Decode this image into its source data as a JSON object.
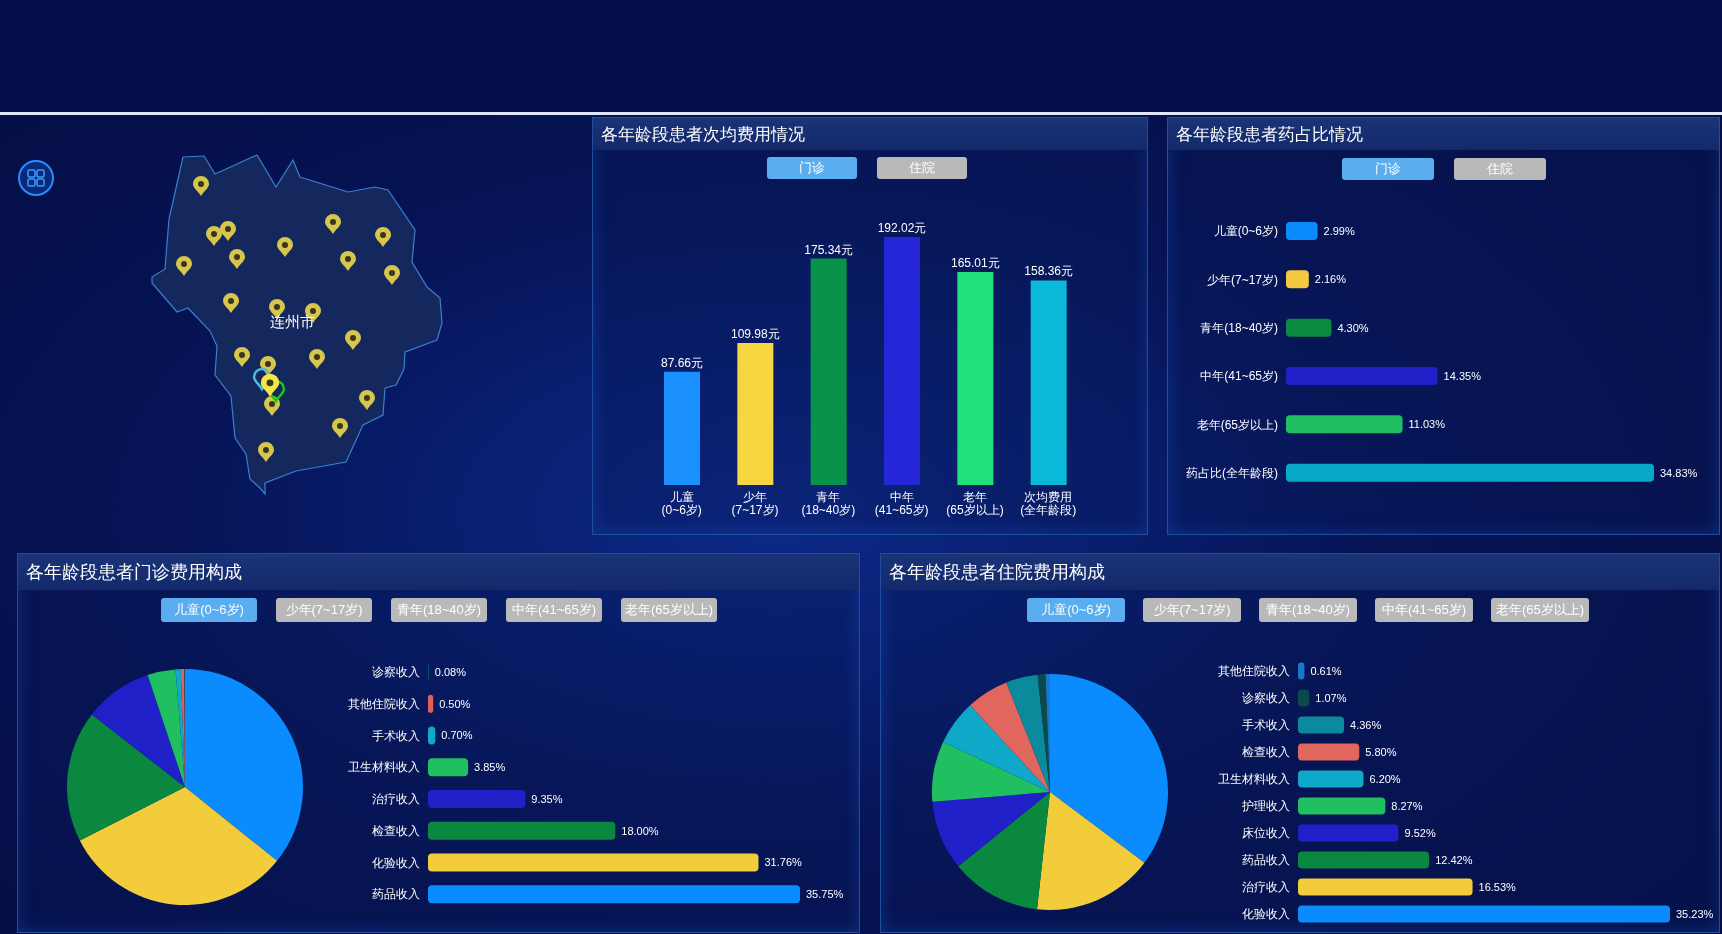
{
  "chart_data": [
    {
      "type": "other",
      "annotations": [
        "连州市"
      ]
    },
    {
      "type": "bar",
      "title": "各年龄段患者次均费用情况",
      "annotations": [
        "门诊",
        "住院"
      ],
      "categories": [
        "儿童\n(0~6岁)",
        "少年\n(7~17岁)",
        "青年\n(18~40岁)",
        "中年\n(41~65岁)",
        "老年\n(65岁以上)",
        "次均费用\n(全年龄段)"
      ],
      "values": [
        87.66,
        109.98,
        175.34,
        192.02,
        165.01,
        158.36
      ],
      "colors": [
        "#1a90ff",
        "#f7d642",
        "#09924a",
        "#2526d8",
        "#22e07a",
        "#0ab8d8"
      ],
      "value_labels": [
        "87.66元",
        "109.98元",
        "175.34元",
        "192.02元",
        "165.01元",
        "158.36元"
      ]
    },
    {
      "type": "bar",
      "orientation": "horizontal",
      "title": "各年龄段患者药占比情况",
      "annotations": [
        "门诊",
        "住院"
      ],
      "categories": [
        "儿童(0~6岁)",
        "少年(7~17岁)",
        "青年(18~40岁)",
        "中年(41~65岁)",
        "老年(65岁以上)",
        "药占比(全年龄段)"
      ],
      "values": [
        2.99,
        2.16,
        4.3,
        14.35,
        11.03,
        34.83
      ],
      "colors": [
        "#0a8cff",
        "#f5c842",
        "#0a8a40",
        "#2020c8",
        "#20c060",
        "#0aa8c8"
      ],
      "value_labels": [
        "2.99%",
        "2.16%",
        "4.30%",
        "14.35%",
        "11.03%",
        "34.83%"
      ]
    },
    {
      "type": "pie",
      "title": "各年龄段患者门诊费用构成",
      "annotations": [
        "儿童(0~6岁)",
        "少年(7~17岁)",
        "青年(18~40岁)",
        "中年(41~65岁)",
        "老年(65岁以上)"
      ],
      "categories": [
        null,
        null,
        null,
        null,
        null,
        null,
        null,
        null
      ],
      "values": [
        35.75,
        31.76,
        18.0,
        9.35,
        3.85,
        0.7,
        0.5,
        0.08
      ],
      "colors": [
        "#0a8cff",
        "#f2cc3a",
        "#0a8840",
        "#2020c8",
        "#20c060",
        "#12a8c8",
        "#e0605a",
        "#0a5a6a"
      ]
    },
    {
      "type": "bar",
      "orientation": "horizontal",
      "categories": [
        "诊察收入",
        "其他住院收入",
        "手术收入",
        "卫生材料收入",
        "治疗收入",
        "检查收入",
        "化验收入",
        "药品收入"
      ],
      "values": [
        0.08,
        0.5,
        0.7,
        3.85,
        9.35,
        18.0,
        31.76,
        35.75
      ],
      "colors": [
        "#0a5a6a",
        "#e0605a",
        "#12a8c8",
        "#20c060",
        "#2020c8",
        "#0a8840",
        "#f2cc3a",
        "#0a8cff"
      ],
      "value_labels": [
        "0.08%",
        "0.50%",
        "0.70%",
        "3.85%",
        "9.35%",
        "18.00%",
        "31.76%",
        "35.75%"
      ]
    },
    {
      "type": "pie",
      "title": "各年龄段患者住院费用构成",
      "annotations": [
        "儿童(0~6岁)",
        "少年(7~17岁)",
        "青年(18~40岁)",
        "中年(41~65岁)",
        "老年(65岁以上)"
      ],
      "categories": [
        null,
        null,
        null,
        null,
        null,
        null,
        null,
        null,
        null,
        null
      ],
      "values": [
        35.23,
        16.53,
        12.42,
        9.52,
        8.27,
        6.2,
        5.8,
        4.36,
        1.07,
        0.61
      ],
      "colors": [
        "#0a8cff",
        "#f2cc3a",
        "#0a8840",
        "#2020c8",
        "#20c060",
        "#10a8c8",
        "#e0665e",
        "#0a8a9a",
        "#0a4a4a",
        "#1a78c8"
      ]
    },
    {
      "type": "bar",
      "orientation": "horizontal",
      "categories": [
        "其他住院收入",
        "诊察收入",
        "手术收入",
        "检查收入",
        "卫生材料收入",
        "护理收入",
        "床位收入",
        "药品收入",
        "治疗收入",
        "化验收入"
      ],
      "values": [
        0.61,
        1.07,
        4.36,
        5.8,
        6.2,
        8.27,
        9.52,
        12.42,
        16.53,
        35.23
      ],
      "colors": [
        "#1a78c8",
        "#0a4a4a",
        "#0a8a9a",
        "#e0665e",
        "#10a8c8",
        "#20c060",
        "#2020c8",
        "#0a8840",
        "#f2cc3a",
        "#0a8cff"
      ],
      "value_labels": [
        "0.61%",
        "1.07%",
        "4.36%",
        "5.80%",
        "6.20%",
        "8.27%",
        "9.52%",
        "12.42%",
        "16.53%",
        "35.23%"
      ]
    }
  ]
}
